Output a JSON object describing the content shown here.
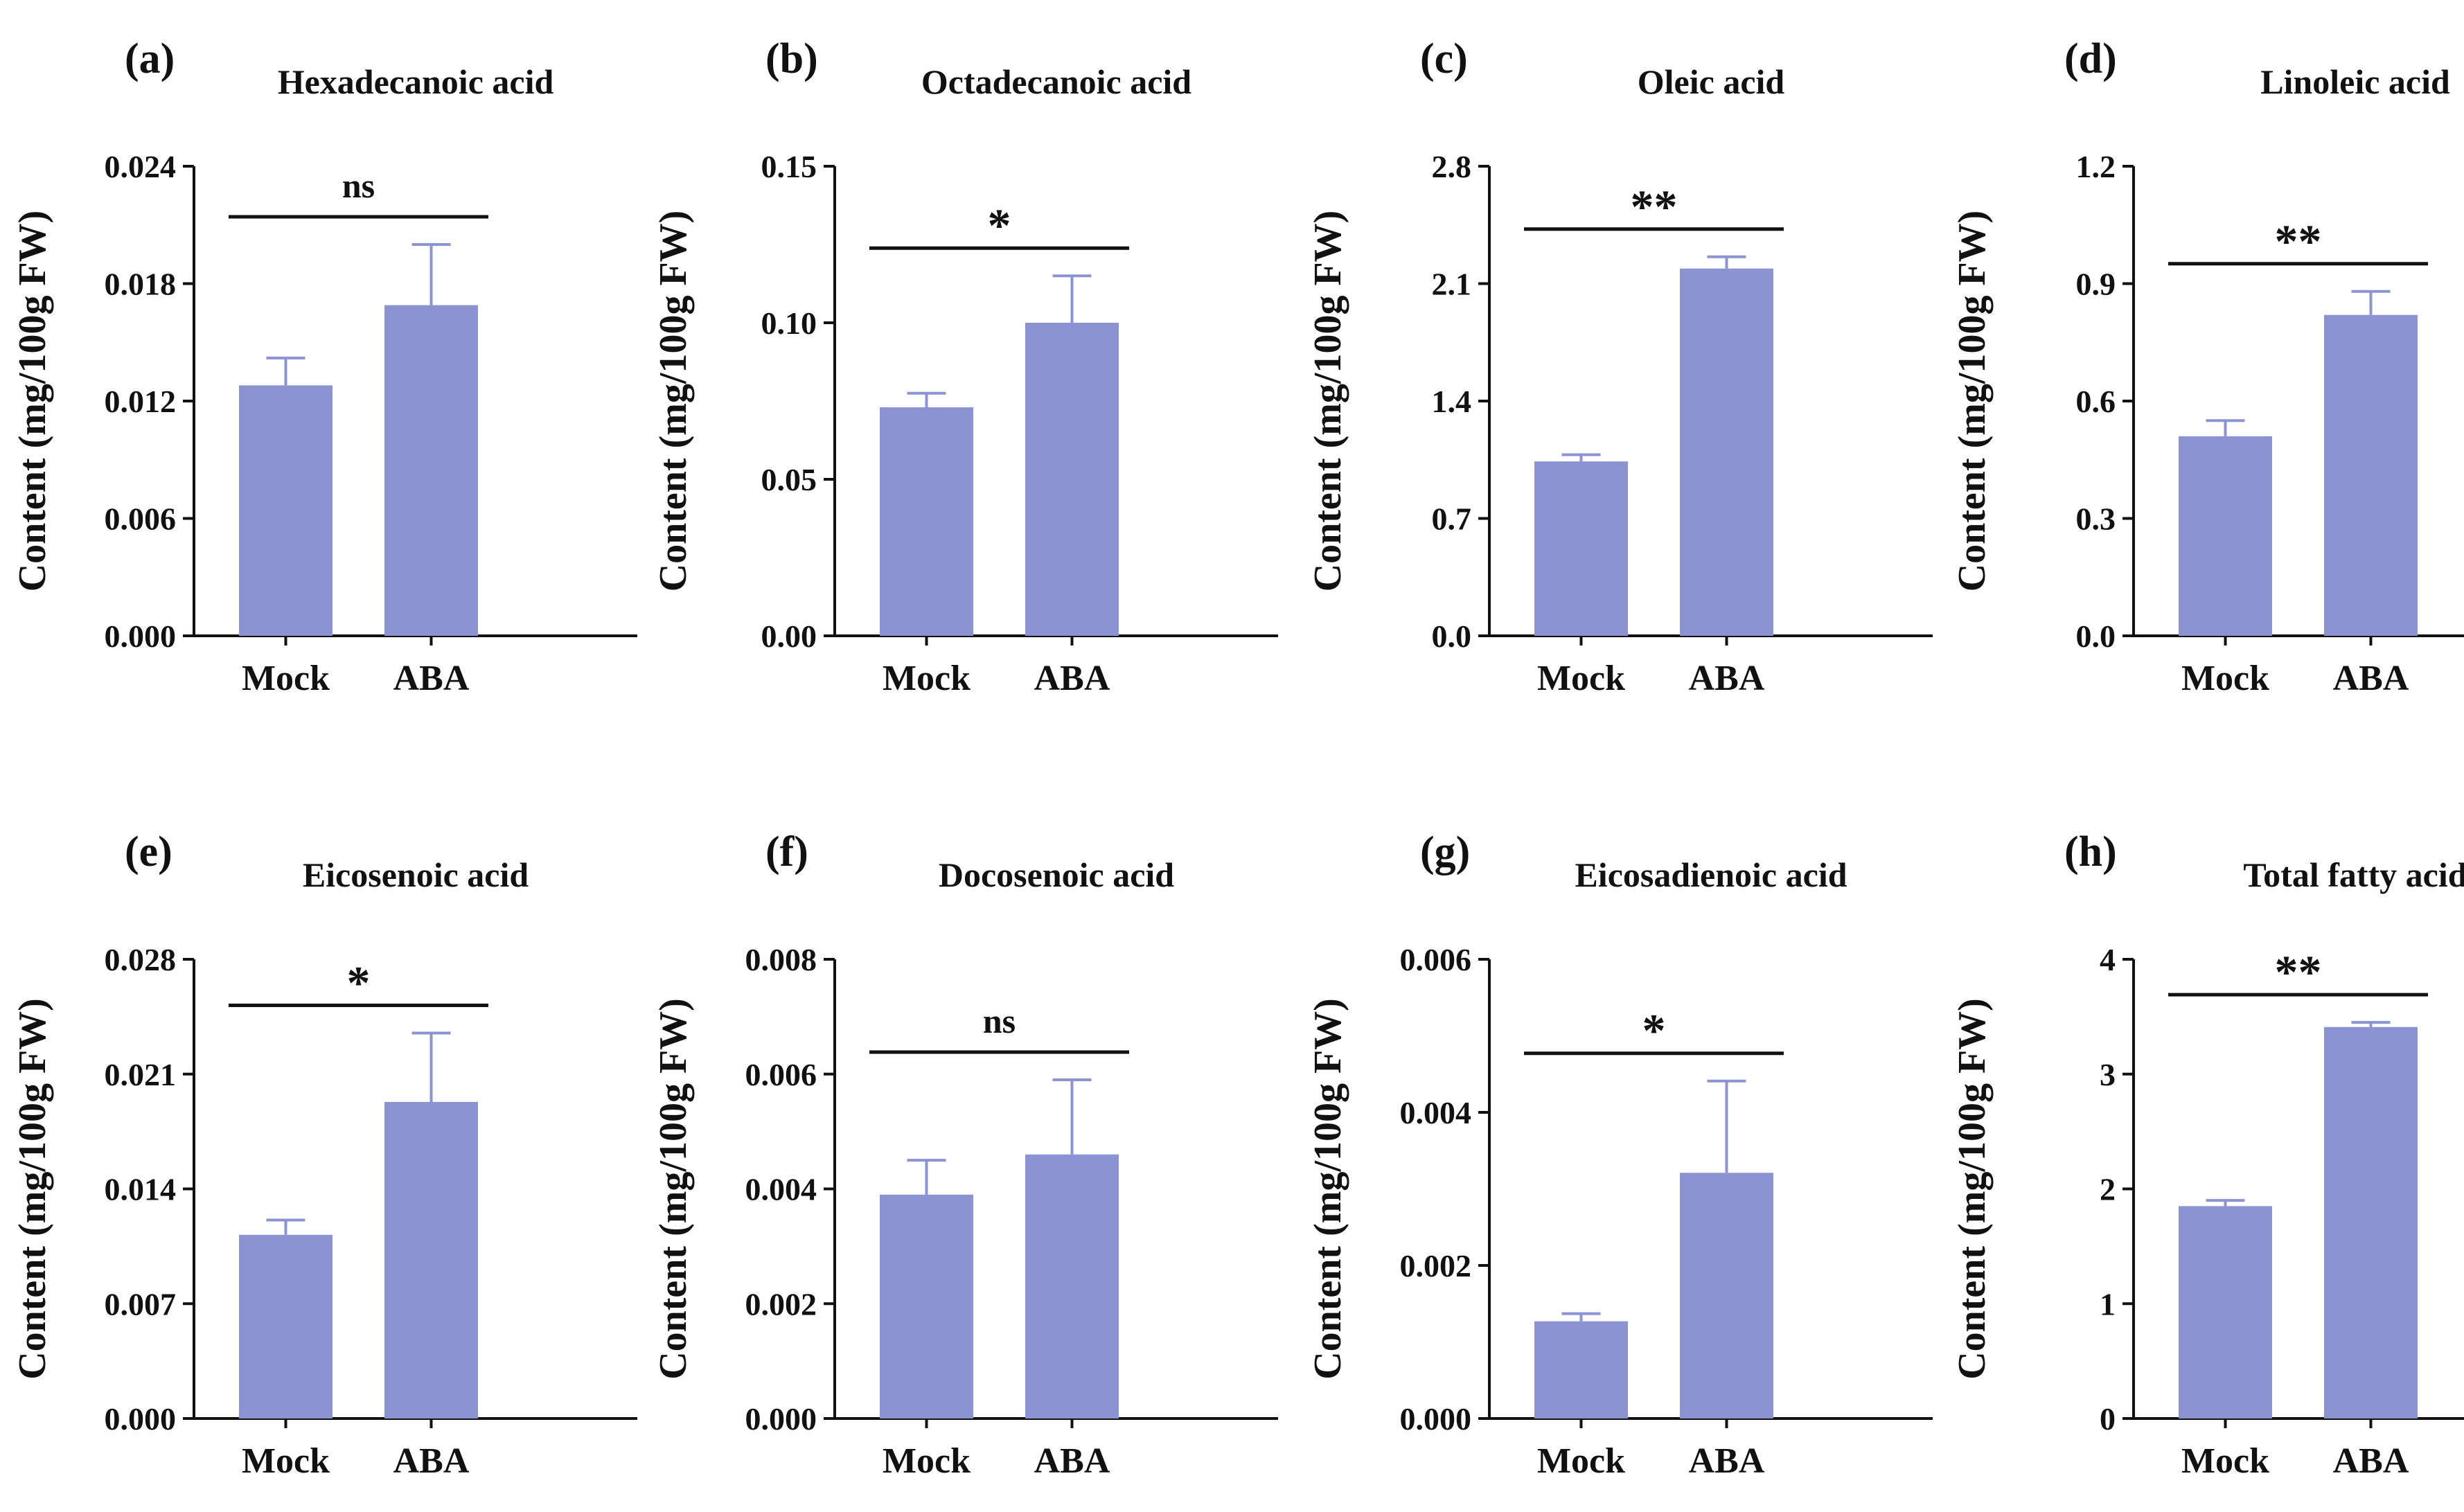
{
  "colors": {
    "bar": "#8b93d2",
    "axis": "#111111",
    "background": "#ffffff"
  },
  "chart_data": [
    {
      "type": "bar",
      "panel": "(a)",
      "title": "Hexadecanoic acid",
      "ylabel": "Content (mg/100g FW)",
      "xlabel": "",
      "categories": [
        "Mock",
        "ABA"
      ],
      "values": [
        0.0128,
        0.0169
      ],
      "errors": [
        0.0014,
        0.0031
      ],
      "ylim": [
        0,
        0.024
      ],
      "yticks": [
        "0.000",
        "0.006",
        "0.012",
        "0.018",
        "0.024"
      ],
      "significance": "ns"
    },
    {
      "type": "bar",
      "panel": "(b)",
      "title": "Octadecanoic acid",
      "ylabel": "Content (mg/100g FW)",
      "xlabel": "",
      "categories": [
        "Mock",
        "ABA"
      ],
      "values": [
        0.073,
        0.1
      ],
      "errors": [
        0.0045,
        0.015
      ],
      "ylim": [
        0,
        0.15
      ],
      "yticks": [
        "0.00",
        "0.05",
        "0.10",
        "0.15"
      ],
      "significance": "*"
    },
    {
      "type": "bar",
      "panel": "(c)",
      "title": "Oleic acid",
      "ylabel": "Content (mg/100g FW)",
      "xlabel": "",
      "categories": [
        "Mock",
        "ABA"
      ],
      "values": [
        1.04,
        2.19
      ],
      "errors": [
        0.04,
        0.07
      ],
      "ylim": [
        0,
        2.8
      ],
      "yticks": [
        "0.0",
        "0.7",
        "1.4",
        "2.1",
        "2.8"
      ],
      "significance": "**"
    },
    {
      "type": "bar",
      "panel": "(d)",
      "title": "Linoleic acid",
      "ylabel": "Content (mg/100g FW)",
      "xlabel": "",
      "categories": [
        "Mock",
        "ABA"
      ],
      "values": [
        0.51,
        0.82
      ],
      "errors": [
        0.04,
        0.06
      ],
      "ylim": [
        0,
        1.2
      ],
      "yticks": [
        "0.0",
        "0.3",
        "0.6",
        "0.9",
        "1.2"
      ],
      "significance": "**"
    },
    {
      "type": "bar",
      "panel": "(e)",
      "title": "Eicosenoic acid",
      "ylabel": "Content (mg/100g FW)",
      "xlabel": "",
      "categories": [
        "Mock",
        "ABA"
      ],
      "values": [
        0.0112,
        0.0193
      ],
      "errors": [
        0.0009,
        0.0042
      ],
      "ylim": [
        0,
        0.028
      ],
      "yticks": [
        "0.000",
        "0.007",
        "0.014",
        "0.021",
        "0.028"
      ],
      "significance": "*"
    },
    {
      "type": "bar",
      "panel": "(f)",
      "title": "Docosenoic acid",
      "ylabel": "Content (mg/100g FW)",
      "xlabel": "",
      "categories": [
        "Mock",
        "ABA"
      ],
      "values": [
        0.0039,
        0.0046
      ],
      "errors": [
        0.0006,
        0.0013
      ],
      "ylim": [
        0,
        0.008
      ],
      "yticks": [
        "0.000",
        "0.002",
        "0.004",
        "0.006",
        "0.008"
      ],
      "significance": "ns"
    },
    {
      "type": "bar",
      "panel": "(g)",
      "title": "Eicosadienoic acid",
      "ylabel": "Content (mg/100g FW)",
      "xlabel": "",
      "categories": [
        "Mock",
        "ABA"
      ],
      "values": [
        0.00127,
        0.00321
      ],
      "errors": [
        0.0001,
        0.0012
      ],
      "ylim": [
        0,
        0.006
      ],
      "yticks": [
        "0.000",
        "0.002",
        "0.004",
        "0.006"
      ],
      "significance": "*"
    },
    {
      "type": "bar",
      "panel": "(h)",
      "title": "Total fatty acid",
      "ylabel": "Content (mg/100g FW)",
      "xlabel": "",
      "categories": [
        "Mock",
        "ABA"
      ],
      "values": [
        1.85,
        3.41
      ],
      "errors": [
        0.05,
        0.04
      ],
      "ylim": [
        0,
        4
      ],
      "yticks": [
        "0",
        "1",
        "2",
        "3",
        "4"
      ],
      "significance": "**"
    }
  ]
}
